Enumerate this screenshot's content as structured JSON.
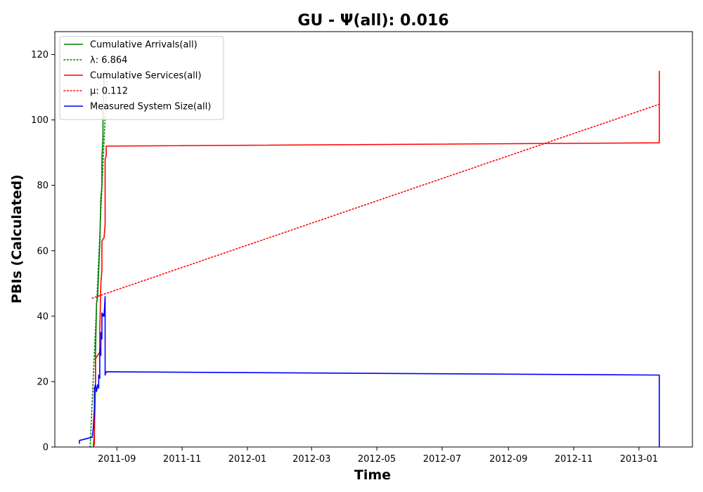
{
  "chart_data": {
    "type": "line",
    "title": "GU -  Ψ(all): 0.016",
    "xlabel": "Time",
    "ylabel": "PBIs (Calculated)",
    "xlim": [
      "2011-07-05",
      "2013-02-20"
    ],
    "ylim": [
      0,
      127
    ],
    "x_ticks": [
      "2011-09",
      "2011-11",
      "2012-01",
      "2012-03",
      "2012-05",
      "2012-07",
      "2012-09",
      "2012-11",
      "2013-01"
    ],
    "y_ticks": [
      0,
      20,
      40,
      60,
      80,
      100,
      120
    ],
    "grid": false,
    "legend_position": "top-left",
    "series": [
      {
        "name": "Cumulative Arrivals(all)",
        "color": "#008000",
        "style": "solid",
        "points": [
          [
            "2011-08-10",
            0
          ],
          [
            "2011-08-11",
            5
          ],
          [
            "2011-08-12",
            18
          ],
          [
            "2011-08-12",
            28
          ],
          [
            "2011-08-13",
            44
          ],
          [
            "2011-08-14",
            46
          ],
          [
            "2011-08-15",
            54
          ],
          [
            "2011-08-16",
            62
          ],
          [
            "2011-08-17",
            76
          ],
          [
            "2011-08-18",
            80
          ],
          [
            "2011-08-18",
            88
          ],
          [
            "2011-08-19",
            95
          ],
          [
            "2011-08-19",
            104
          ],
          [
            "2011-08-20",
            112
          ],
          [
            "2011-08-20",
            115
          ]
        ]
      },
      {
        "name": "λ: 6.864",
        "color": "#008000",
        "style": "dotted",
        "points": [
          [
            "2011-08-07",
            0
          ],
          [
            "2011-08-23",
            115
          ]
        ]
      },
      {
        "name": "Cumulative Services(all)",
        "color": "#ff0000",
        "style": "solid",
        "points": [
          [
            "2011-08-10",
            0
          ],
          [
            "2011-08-11",
            1
          ],
          [
            "2011-08-11",
            12
          ],
          [
            "2011-08-12",
            20
          ],
          [
            "2011-08-12",
            27
          ],
          [
            "2011-08-14",
            28
          ],
          [
            "2011-08-16",
            29
          ],
          [
            "2011-08-16",
            35
          ],
          [
            "2011-08-17",
            50
          ],
          [
            "2011-08-18",
            54
          ],
          [
            "2011-08-18",
            63
          ],
          [
            "2011-08-20",
            64
          ],
          [
            "2011-08-21",
            68
          ],
          [
            "2011-08-21",
            88
          ],
          [
            "2011-08-22",
            89
          ],
          [
            "2011-08-22",
            92
          ],
          [
            "2013-01-20",
            93
          ],
          [
            "2013-01-20",
            115
          ]
        ]
      },
      {
        "name": "μ: 0.112",
        "color": "#ff0000",
        "style": "dotted",
        "points": [
          [
            "2011-08-09",
            45.5
          ],
          [
            "2013-01-20",
            104.8
          ]
        ]
      },
      {
        "name": "Measured System Size(all)",
        "color": "#0000ff",
        "style": "solid",
        "points": [
          [
            "2011-07-28",
            1
          ],
          [
            "2011-07-28",
            2
          ],
          [
            "2011-08-09",
            3
          ],
          [
            "2011-08-10",
            6
          ],
          [
            "2011-08-11",
            12
          ],
          [
            "2011-08-11",
            18
          ],
          [
            "2011-08-12",
            19
          ],
          [
            "2011-08-13",
            17
          ],
          [
            "2011-08-14",
            19
          ],
          [
            "2011-08-15",
            18
          ],
          [
            "2011-08-15",
            22
          ],
          [
            "2011-08-16",
            21
          ],
          [
            "2011-08-16",
            30
          ],
          [
            "2011-08-17",
            28
          ],
          [
            "2011-08-17",
            35
          ],
          [
            "2011-08-18",
            33
          ],
          [
            "2011-08-18",
            41
          ],
          [
            "2011-08-19",
            40
          ],
          [
            "2011-08-20",
            41
          ],
          [
            "2011-08-20",
            40
          ],
          [
            "2011-08-21",
            46
          ],
          [
            "2011-08-21",
            26
          ],
          [
            "2011-08-21",
            22
          ],
          [
            "2011-08-22",
            23
          ],
          [
            "2013-01-20",
            22
          ],
          [
            "2013-01-20",
            0
          ]
        ]
      }
    ]
  }
}
